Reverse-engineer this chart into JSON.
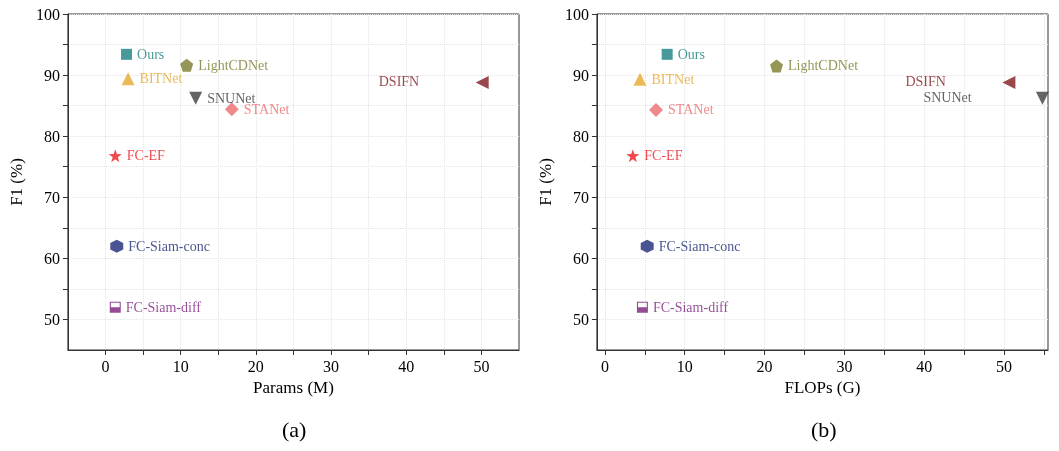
{
  "chart_data": [
    {
      "type": "scatter",
      "xlabel": "Params (M)",
      "ylabel": "F1 (%)",
      "annotations": [
        "(a)"
      ],
      "xlim": [
        -5,
        55
      ],
      "ylim": [
        45,
        100
      ],
      "xticks": [
        0,
        {
          "value": 5,
          "label": null
        },
        10,
        {
          "value": 15,
          "label": null
        },
        20,
        {
          "value": 25,
          "label": null
        },
        30,
        {
          "value": 35,
          "label": null
        },
        40,
        {
          "value": 45,
          "label": null
        },
        50
      ],
      "yticks": [
        50,
        {
          "value": 55,
          "label": null
        },
        60,
        {
          "value": 65,
          "label": null
        },
        70,
        {
          "value": 75,
          "label": null
        },
        80,
        {
          "value": 85,
          "label": null
        },
        90,
        {
          "value": 95,
          "label": null
        },
        100
      ],
      "grid": true,
      "legend": false,
      "series": [
        {
          "name": "Ours",
          "color": "#1a8080",
          "marker": "square",
          "x": [
            2.8
          ],
          "values": [
            93.4
          ]
        },
        {
          "name": "LightCDNet",
          "color": "#7a7a2c",
          "x": [
            10.8
          ],
          "values": [
            91.6
          ]
        },
        {
          "name": "BITNet",
          "color": "#e6a92e",
          "marker": "triangle",
          "x": [
            3.0
          ],
          "values": [
            89.4
          ]
        },
        {
          "name": "SNUNet",
          "color": "#3d3d3d",
          "marker": "triangle-down",
          "x": [
            12.0
          ],
          "values": [
            86.2
          ]
        },
        {
          "name": "STANet",
          "color": "#ec6b6b",
          "marker": "diamond",
          "x": [
            16.8
          ],
          "values": [
            84.4
          ]
        },
        {
          "name": "DSIFN",
          "color": "#801a1f",
          "marker": "triangle-left",
          "x": [
            50.1
          ],
          "values": [
            88.8
          ]
        },
        {
          "name": "FC-EF",
          "color": "#ee1c25",
          "marker": "star",
          "x": [
            1.3
          ],
          "values": [
            76.8
          ]
        },
        {
          "name": "FC-Siam-conc",
          "color": "#1c2a78",
          "x": [
            1.5
          ],
          "values": [
            62.0
          ]
        },
        {
          "name": "FC-Siam-diff",
          "color": "#7b1f7b",
          "x": [
            1.3
          ],
          "values": [
            52.0
          ]
        }
      ]
    },
    {
      "type": "scatter",
      "xlabel": "FLOPs (G)",
      "ylabel": "F1 (%)",
      "annotations": [
        "(b)"
      ],
      "xlim": [
        -1,
        55.5
      ],
      "ylim": [
        45,
        100
      ],
      "xticks": [
        0,
        {
          "value": 5,
          "label": null
        },
        10,
        {
          "value": 15,
          "label": null
        },
        20,
        {
          "value": 25,
          "label": null
        },
        30,
        {
          "value": 35,
          "label": null
        },
        40,
        {
          "value": 45,
          "label": null
        },
        50,
        {
          "value": 55,
          "label": null
        }
      ],
      "yticks": [
        50,
        {
          "value": 55,
          "label": null
        },
        60,
        {
          "value": 65,
          "label": null
        },
        70,
        {
          "value": 75,
          "label": null
        },
        80,
        {
          "value": 85,
          "label": null
        },
        90,
        {
          "value": 95,
          "label": null
        },
        100
      ],
      "grid": true,
      "legend": false,
      "series": [
        {
          "name": "Ours",
          "color": "#1a8080",
          "marker": "square",
          "x": [
            7.8
          ],
          "values": [
            93.4
          ]
        },
        {
          "name": "LightCDNet",
          "color": "#7a7a2c",
          "x": [
            21.5
          ],
          "values": [
            91.5
          ]
        },
        {
          "name": "BITNet",
          "color": "#e6a92e",
          "marker": "triangle",
          "x": [
            4.4
          ],
          "values": [
            89.3
          ]
        },
        {
          "name": "SNUNet",
          "color": "#3d3d3d",
          "marker": "triangle-down",
          "x": [
            54.8
          ],
          "values": [
            86.2
          ]
        },
        {
          "name": "STANet",
          "color": "#ec6b6b",
          "marker": "diamond",
          "x": [
            6.4
          ],
          "values": [
            84.3
          ]
        },
        {
          "name": "DSIFN",
          "color": "#801a1f",
          "marker": "triangle-left",
          "x": [
            50.6
          ],
          "values": [
            88.8
          ]
        },
        {
          "name": "FC-EF",
          "color": "#ee1c25",
          "marker": "star",
          "x": [
            3.5
          ],
          "values": [
            76.8
          ]
        },
        {
          "name": "FC-Siam-conc",
          "color": "#1c2a78",
          "x": [
            5.3
          ],
          "values": [
            62.0
          ]
        },
        {
          "name": "FC-Siam-diff",
          "color": "#7b1f7b",
          "x": [
            4.7
          ],
          "values": [
            52.0
          ]
        }
      ]
    }
  ]
}
